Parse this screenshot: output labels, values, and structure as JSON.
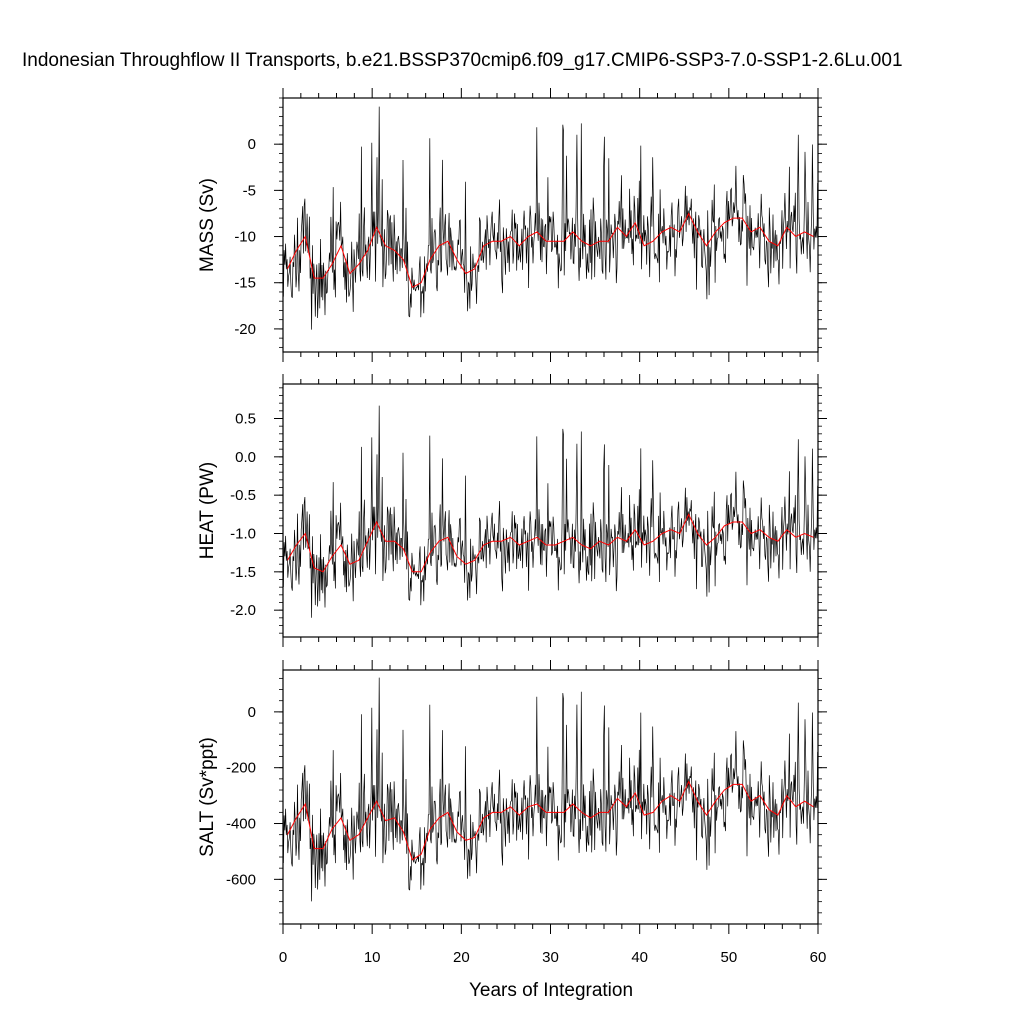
{
  "chart_data": {
    "type": "line",
    "title": "Indonesian Throughflow II Transports, b.e21.BSSP370cmip6.f09_g17.CMIP6-SSP3-7.0-SSP1-2.6Lu.001",
    "xlabel": "Years of Integration",
    "xlim": [
      0,
      60
    ],
    "xticks": [
      "0",
      "10",
      "20",
      "30",
      "40",
      "50",
      "60"
    ],
    "series_colors": {
      "monthly": "#000000",
      "annual": "#ff0000"
    },
    "panels": [
      {
        "id": "mass",
        "ylabel": "MASS (Sv)",
        "ylim": [
          -22.5,
          5
        ],
        "yticks": [
          {
            "v": 0,
            "label": "0"
          },
          {
            "v": -5,
            "label": "-5"
          },
          {
            "v": -10,
            "label": "-10"
          },
          {
            "v": -15,
            "label": "-15"
          },
          {
            "v": -20,
            "label": "-20"
          }
        ],
        "minor_step": 1,
        "mean": -12.2,
        "amp": 3.1,
        "annual": [
          -13.5,
          -11.5,
          -10,
          -14.5,
          -14.5,
          -13,
          -11,
          -14,
          -13,
          -11.5,
          -9,
          -11,
          -11.5,
          -12.5,
          -15.5,
          -15,
          -12.5,
          -11,
          -10.5,
          -12.5,
          -14,
          -13.5,
          -11,
          -10.5,
          -10.5,
          -10,
          -11,
          -10,
          -9.5,
          -10.5,
          -10.5,
          -10.5,
          -9.5,
          -10.5,
          -11,
          -10.5,
          -10.5,
          -9,
          -10,
          -8.5,
          -11,
          -10.5,
          -9.5,
          -9,
          -9.5,
          -7.5,
          -9.5,
          -11,
          -9.5,
          -8.5,
          -8,
          -8,
          -9.5,
          -9,
          -10.5,
          -11,
          -9,
          -10,
          -9.5,
          -10
        ]
      },
      {
        "id": "heat",
        "ylabel": "HEAT (PW)",
        "ylim": [
          -2.35,
          0.95
        ],
        "yticks": [
          {
            "v": 0.5,
            "label": "0.5"
          },
          {
            "v": 0,
            "label": "0.0"
          },
          {
            "v": -0.5,
            "label": "-0.5"
          },
          {
            "v": -1,
            "label": "-1.0"
          },
          {
            "v": -1.5,
            "label": "-1.5"
          },
          {
            "v": -2,
            "label": "-2.0"
          }
        ],
        "minor_step": 0.1,
        "mean": -1.3,
        "amp": 0.36,
        "annual": [
          -1.35,
          -1.15,
          -1,
          -1.45,
          -1.5,
          -1.3,
          -1.15,
          -1.4,
          -1.35,
          -1.1,
          -0.85,
          -1.1,
          -1.1,
          -1.2,
          -1.5,
          -1.5,
          -1.25,
          -1.1,
          -1.05,
          -1.3,
          -1.4,
          -1.35,
          -1.15,
          -1.1,
          -1.1,
          -1.05,
          -1.15,
          -1.1,
          -1.05,
          -1.15,
          -1.15,
          -1.1,
          -1.05,
          -1.15,
          -1.2,
          -1.1,
          -1.15,
          -1.05,
          -1.1,
          -0.95,
          -1.15,
          -1.1,
          -1,
          -0.95,
          -1,
          -0.75,
          -1,
          -1.15,
          -1.05,
          -0.9,
          -0.85,
          -0.85,
          -1,
          -0.95,
          -1.05,
          -1.1,
          -0.95,
          -1.05,
          -1,
          -1.05
        ]
      },
      {
        "id": "salt",
        "ylabel": "SALT (Sv*ppt)",
        "ylim": [
          -760,
          150
        ],
        "yticks": [
          {
            "v": 0,
            "label": "0"
          },
          {
            "v": -200,
            "label": "-200"
          },
          {
            "v": -400,
            "label": "-400"
          },
          {
            "v": -600,
            "label": "-600"
          }
        ],
        "minor_step": 40,
        "mean": -410,
        "amp": 105,
        "annual": [
          -440,
          -380,
          -330,
          -490,
          -490,
          -420,
          -380,
          -460,
          -440,
          -380,
          -320,
          -390,
          -380,
          -430,
          -530,
          -510,
          -420,
          -380,
          -360,
          -430,
          -460,
          -450,
          -380,
          -360,
          -360,
          -340,
          -370,
          -340,
          -330,
          -360,
          -360,
          -360,
          -330,
          -360,
          -380,
          -360,
          -360,
          -310,
          -340,
          -290,
          -370,
          -360,
          -320,
          -300,
          -320,
          -250,
          -320,
          -370,
          -320,
          -280,
          -260,
          -260,
          -320,
          -300,
          -350,
          -370,
          -300,
          -340,
          -320,
          -340
        ]
      }
    ]
  }
}
